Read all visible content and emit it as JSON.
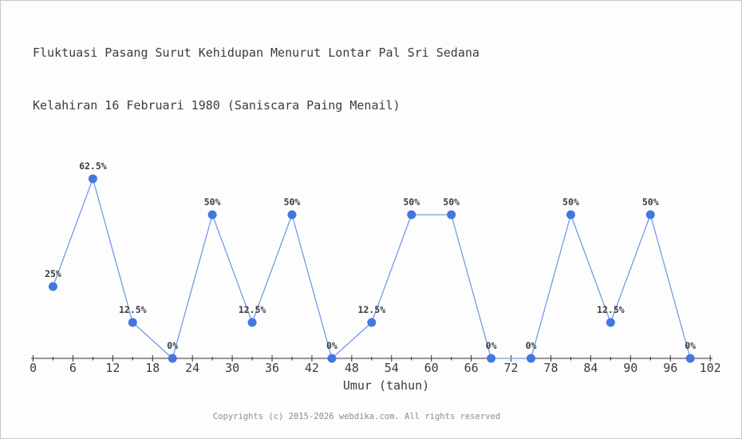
{
  "title": {
    "line1": "Fluktuasi Pasang Surut Kehidupan Menurut Lontar Pal Sri Sedana",
    "line2": "Kelahiran 16 Februari 1980 (Saniscara Paing Menail)"
  },
  "chart_data": {
    "type": "line",
    "x": [
      3,
      9,
      15,
      21,
      27,
      33,
      39,
      45,
      51,
      57,
      63,
      69,
      75,
      81,
      87,
      93,
      99
    ],
    "values": [
      25,
      62.5,
      12.5,
      0,
      50,
      12.5,
      50,
      0,
      12.5,
      50,
      50,
      0,
      0,
      50,
      12.5,
      50,
      0
    ],
    "point_labels": [
      "25%",
      "62.5%",
      "12.5%",
      "0%",
      "50%",
      "12.5%",
      "50%",
      "0%",
      "12.5%",
      "50%",
      "50%",
      "0%",
      "0%",
      "50%",
      "12.5%",
      "50%",
      "0%"
    ],
    "x_ticks": [
      0,
      6,
      12,
      18,
      24,
      30,
      36,
      42,
      48,
      54,
      60,
      66,
      72,
      78,
      84,
      90,
      96,
      102
    ],
    "x_minor_ticks": [
      3,
      9,
      15,
      21,
      27,
      33,
      39,
      45,
      51,
      57,
      63,
      69,
      75,
      81,
      87,
      93,
      99
    ],
    "xlim": [
      0,
      102
    ],
    "ylim": [
      0,
      70
    ],
    "xlabel": "Umur (tahun)",
    "ylabel": "",
    "grid": false,
    "legend": false,
    "colors": {
      "line": "#6f9ce8",
      "marker": "#4377e0",
      "axis": "#2e2e2e",
      "text": "#3c3c3c"
    }
  },
  "footer": {
    "copyright": "Copyrights (c) 2015-2026 webdika.com. All rights reserved"
  }
}
